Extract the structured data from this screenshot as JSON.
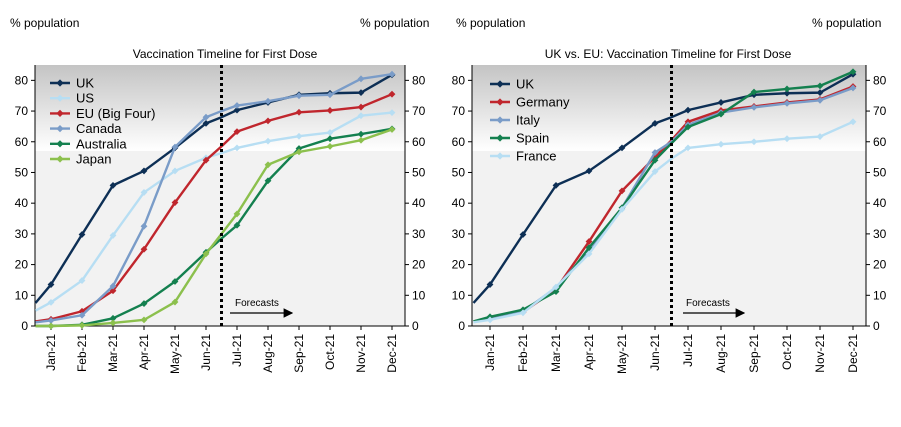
{
  "chart_data": [
    {
      "type": "line",
      "title": "Vaccination Timeline for First Dose",
      "left_axis_label": "% population",
      "right_axis_label": "% population",
      "ylim": [
        0,
        85
      ],
      "yticks": [
        0,
        10,
        20,
        30,
        40,
        50,
        60,
        70,
        80
      ],
      "categories": [
        "Jan-21",
        "Feb-21",
        "Mar-21",
        "Apr-21",
        "May-21",
        "Jun-21",
        "Jul-21",
        "Aug-21",
        "Sep-21",
        "Oct-21",
        "Nov-21",
        "Dec-21"
      ],
      "forecast_label": "Forecasts",
      "forecast_start": 5.5,
      "series": [
        {
          "name": "UK",
          "color": "#0d2f55",
          "marker": "diamond",
          "x": [
            -0.5,
            0,
            1,
            2,
            3,
            4,
            5,
            5.5,
            6,
            7,
            8,
            9,
            10,
            11
          ],
          "values": [
            7.5,
            13.5,
            29.8,
            45.8,
            50.5,
            58,
            66,
            68,
            70.3,
            72.8,
            75.3,
            75.8,
            76,
            81.8
          ]
        },
        {
          "name": "US",
          "color": "#b7def3",
          "marker": "diamond",
          "x": [
            -0.5,
            0,
            1,
            2,
            3,
            4,
            5,
            5.5,
            6,
            7,
            8,
            9,
            10,
            11
          ],
          "values": [
            5,
            7.7,
            14.8,
            29.5,
            43.5,
            50.5,
            54.8,
            56.3,
            58,
            60.2,
            61.8,
            63,
            68.5,
            69.5
          ]
        },
        {
          "name": "EU (Big Four)",
          "color": "#c0262d",
          "marker": "diamond",
          "x": [
            -0.5,
            0,
            1,
            2,
            3,
            4,
            5,
            5.5,
            6,
            7,
            8,
            9,
            10,
            11
          ],
          "values": [
            1.5,
            2.2,
            4.8,
            11.5,
            25,
            40.2,
            54,
            58.5,
            63.3,
            66.8,
            69.6,
            70.2,
            71.3,
            75.5
          ]
        },
        {
          "name": "Canada",
          "color": "#7a9cc8",
          "marker": "diamond",
          "x": [
            -0.5,
            0,
            1,
            2,
            3,
            4,
            5,
            5.5,
            6,
            7,
            8,
            9,
            10,
            11
          ],
          "values": [
            1.2,
            1.8,
            3.5,
            13,
            32.5,
            58.3,
            68,
            70,
            71.8,
            73.2,
            75,
            75.3,
            80.5,
            82
          ]
        },
        {
          "name": "Australia",
          "color": "#14804f",
          "marker": "diamond",
          "x": [
            -0.5,
            0,
            1,
            2,
            3,
            4,
            5,
            5.5,
            6,
            7,
            8,
            9,
            10,
            11
          ],
          "values": [
            0,
            0,
            0.4,
            2.5,
            7.3,
            14.5,
            24,
            28.5,
            32.8,
            47.3,
            57.8,
            61,
            62.5,
            64.2
          ]
        },
        {
          "name": "Japan",
          "color": "#8cc04d",
          "marker": "diamond",
          "x": [
            -0.5,
            0,
            1,
            2,
            3,
            4,
            5,
            5.5,
            6,
            7,
            8,
            9,
            10,
            11
          ],
          "values": [
            0,
            0,
            0.2,
            1,
            2,
            7.8,
            23.5,
            30,
            36.5,
            52.5,
            56.7,
            58.5,
            60.5,
            64
          ]
        }
      ]
    },
    {
      "type": "line",
      "title": "UK vs. EU: Vaccination Timeline for First Dose",
      "left_axis_label": "% population",
      "right_axis_label": "% population",
      "ylim": [
        0,
        85
      ],
      "yticks": [
        0,
        10,
        20,
        30,
        40,
        50,
        60,
        70,
        80
      ],
      "categories": [
        "Jan-21",
        "Feb-21",
        "Mar-21",
        "Apr-21",
        "May-21",
        "Jun-21",
        "Jul-21",
        "Aug-21",
        "Sep-21",
        "Oct-21",
        "Nov-21",
        "Dec-21"
      ],
      "forecast_label": "Forecasts",
      "forecast_start": 5.5,
      "series": [
        {
          "name": "UK",
          "color": "#0d2f55",
          "marker": "diamond",
          "x": [
            -0.5,
            0,
            1,
            2,
            3,
            4,
            5,
            5.5,
            6,
            7,
            8,
            9,
            10,
            11
          ],
          "values": [
            7.5,
            13.5,
            29.8,
            45.8,
            50.5,
            58,
            66,
            68,
            70.3,
            72.8,
            75.3,
            75.8,
            76,
            82
          ]
        },
        {
          "name": "Germany",
          "color": "#c0262d",
          "marker": "diamond",
          "x": [
            -0.5,
            0,
            1,
            2,
            3,
            4,
            5,
            5.5,
            6,
            7,
            8,
            9,
            10,
            11
          ],
          "values": [
            1.5,
            2.5,
            4.5,
            12,
            27.5,
            44,
            55,
            60.5,
            66.5,
            70.2,
            71.5,
            72.8,
            73.8,
            78
          ]
        },
        {
          "name": "Italy",
          "color": "#7a9cc8",
          "marker": "diamond",
          "x": [
            -0.5,
            0,
            1,
            2,
            3,
            4,
            5,
            5.5,
            6,
            7,
            8,
            9,
            10,
            11
          ],
          "values": [
            1.5,
            2.2,
            4.7,
            12.5,
            24.5,
            38.5,
            56.5,
            60,
            65.5,
            69.5,
            71.2,
            72.5,
            73.5,
            77.5
          ]
        },
        {
          "name": "Spain",
          "color": "#14804f",
          "marker": "diamond",
          "x": [
            -0.5,
            0,
            1,
            2,
            3,
            4,
            5,
            5.5,
            6,
            7,
            8,
            9,
            10,
            11
          ],
          "values": [
            1.5,
            3,
            5.3,
            11.2,
            25.5,
            38.5,
            54,
            59.5,
            64.8,
            69,
            76.2,
            77.2,
            78.2,
            82.8
          ]
        },
        {
          "name": "France",
          "color": "#b7def3",
          "marker": "diamond",
          "x": [
            -0.5,
            0,
            1,
            2,
            3,
            4,
            5,
            5.5,
            6,
            7,
            8,
            9,
            10,
            11
          ],
          "values": [
            1.2,
            2,
            4.3,
            12.7,
            23.5,
            38,
            50.3,
            54.5,
            58,
            59.2,
            60,
            61,
            61.7,
            66.5
          ]
        }
      ]
    }
  ]
}
